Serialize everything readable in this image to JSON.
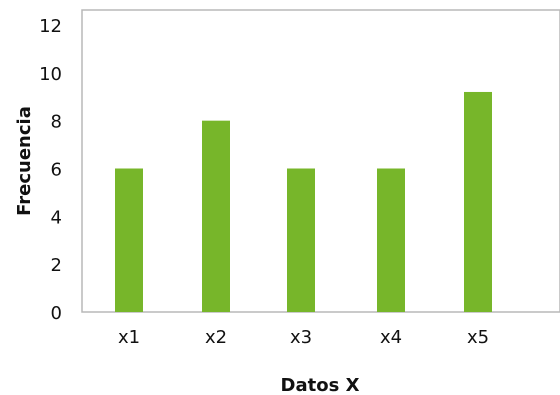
{
  "chart_data": {
    "type": "bar",
    "categories": [
      "x1",
      "x2",
      "x3",
      "x4",
      "x5"
    ],
    "values": [
      6,
      8,
      6,
      6,
      9.2
    ],
    "xlabel": "Datos X",
    "ylabel": "Frecuencia",
    "ylim": [
      0,
      12
    ],
    "yticks": [
      "0",
      "2",
      "4",
      "6",
      "8",
      "10",
      "12"
    ],
    "grid": false,
    "legend": "none",
    "bar_color": "#77b62a",
    "axis_color": "#b8b8b8"
  }
}
